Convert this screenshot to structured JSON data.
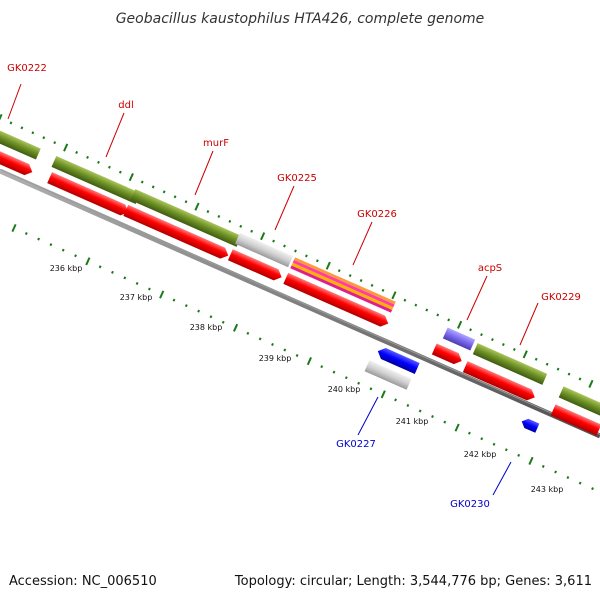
{
  "title": "Geobacillus kaustophilus HTA426, complete genome",
  "footer": {
    "accession": "Accession: NC_006510",
    "topology": "Topology: circular; Length: 3,544,776 bp; Genes: 3,611"
  },
  "colors": {
    "red": "#ff0000",
    "red_dark": "#b00000",
    "olive": "#6b8e23",
    "olive_dark": "#3f5b12",
    "grey": "#c8c8c8",
    "blue": "#0000ff",
    "purple": "#7b68ee",
    "tick_green": "#1a7a1a",
    "backbone": "#808080",
    "label_red": "#cc0000",
    "label_blue": "#0000cc"
  },
  "kbp_labels": [
    "236 kbp",
    "237 kbp",
    "238 kbp",
    "239 kbp",
    "240 kbp",
    "241 kbp",
    "242 kbp",
    "243 kbp"
  ],
  "gene_labels": [
    {
      "id": "GK0222",
      "color": "red"
    },
    {
      "id": "ddl",
      "color": "red"
    },
    {
      "id": "murF",
      "color": "red"
    },
    {
      "id": "GK0225",
      "color": "red"
    },
    {
      "id": "GK0226",
      "color": "red"
    },
    {
      "id": "acpS",
      "color": "red"
    },
    {
      "id": "GK0229",
      "color": "red"
    },
    {
      "id": "GK0227",
      "color": "blue"
    },
    {
      "id": "GK0230",
      "color": "blue"
    }
  ]
}
